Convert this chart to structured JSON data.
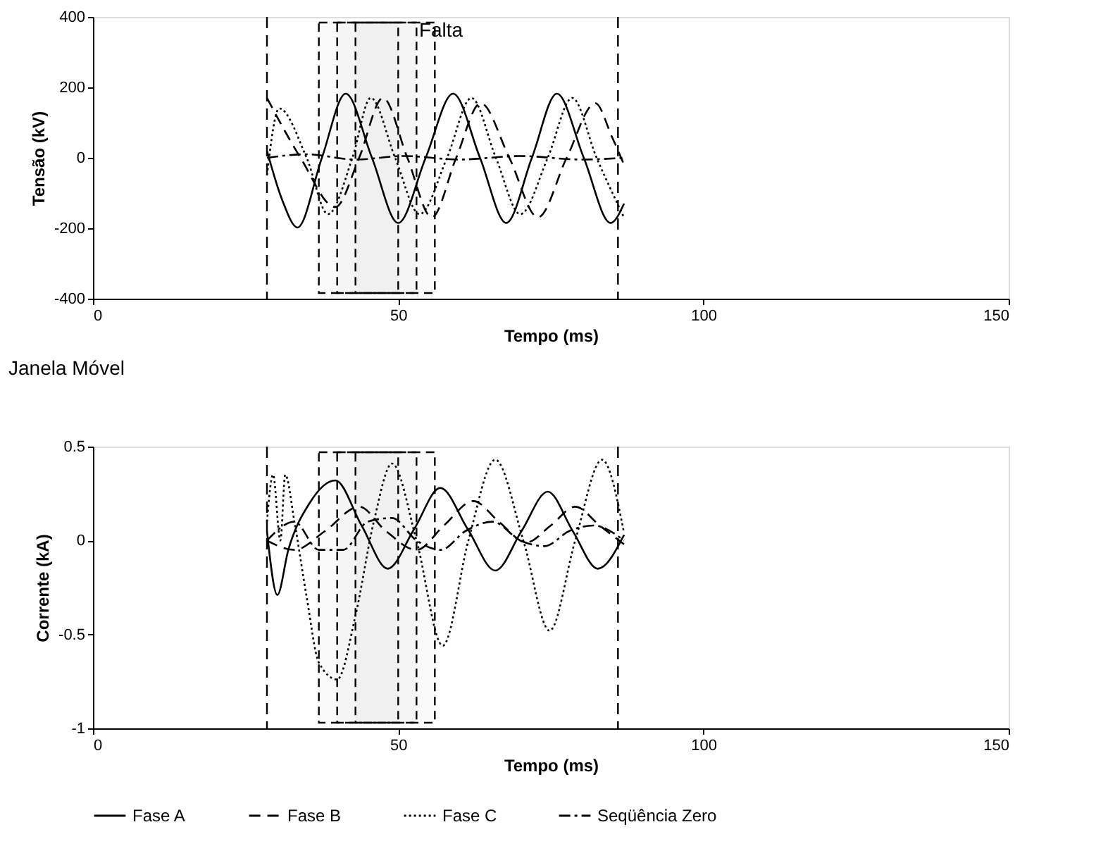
{
  "chart_data": [
    {
      "type": "line",
      "xlabel": "Tempo (ms)",
      "ylabel": "Tensão (kV)",
      "xlim": [
        0,
        150
      ],
      "xticks": [
        0,
        50,
        100,
        150
      ],
      "ylim": [
        -400,
        400
      ],
      "yticks": [
        -400,
        -200,
        0,
        200,
        400
      ],
      "grid": false,
      "legend": false,
      "marker": "none",
      "annotations": [
        "Falta",
        "Janela Móvel"
      ],
      "ref_lines": [
        {
          "axis": "x",
          "value": 28.5,
          "label": null,
          "color": "#000000",
          "line_style": "dashed"
        },
        {
          "axis": "x",
          "value": 86,
          "label": null,
          "color": "#000000",
          "line_style": "dashed"
        }
      ],
      "bands": [
        {
          "axis": "x",
          "from": 37,
          "to": 50,
          "label": null,
          "color": "#000000"
        },
        {
          "axis": "x",
          "from": 40,
          "to": 53,
          "label": null,
          "color": "#000000"
        },
        {
          "axis": "x",
          "from": 43,
          "to": 56,
          "label": null,
          "color": "#000000"
        }
      ],
      "series": [
        {
          "color": "#000000",
          "line_style": "solid",
          "x": [
            28.5,
            31,
            33.5,
            37.5,
            41.4,
            45.7,
            50,
            54.5,
            59,
            63.4,
            67.7,
            71.9,
            76,
            80.4,
            84.8,
            87
          ],
          "values": [
            20,
            -120,
            -198,
            0,
            182,
            0,
            -185,
            0,
            182,
            0,
            -185,
            0,
            182,
            0,
            -185,
            -130
          ]
        },
        {
          "color": "#000000",
          "line_style": "dashed",
          "x": [
            28.5,
            34,
            39.7,
            43.6,
            47.5,
            51.5,
            55.5,
            59.5,
            63.5,
            68.2,
            72.9,
            77.6,
            82.3,
            85,
            87
          ],
          "values": [
            170,
            0,
            -140,
            0,
            170,
            0,
            -169,
            0,
            155,
            0,
            -169,
            0,
            155,
            60,
            -20
          ]
        },
        {
          "color": "#000000",
          "line_style": "dotted",
          "x": [
            28.5,
            30.5,
            35,
            38.5,
            42.5,
            45.5,
            49.5,
            53.5,
            58,
            62,
            66,
            70,
            74.5,
            78.5,
            82.5,
            87
          ],
          "values": [
            -50,
            140,
            0,
            -160,
            0,
            170,
            0,
            -160,
            0,
            170,
            0,
            -160,
            0,
            170,
            0,
            -170
          ]
        },
        {
          "color": "#000000",
          "line_style": "dashdot",
          "x": [
            28.5,
            35,
            43,
            51,
            60,
            70,
            80,
            87
          ],
          "values": [
            0,
            10,
            -5,
            5,
            -5,
            5,
            -5,
            0
          ]
        }
      ]
    },
    {
      "type": "line",
      "xlabel": "Tempo (ms)",
      "ylabel": "Corrente (kA)",
      "xlim": [
        0,
        150
      ],
      "xticks": [
        0,
        50,
        100,
        150
      ],
      "ylim": [
        -1,
        0.5
      ],
      "yticks": [
        -1,
        -0.5,
        0,
        0.5
      ],
      "grid": false,
      "legend": "bottom",
      "marker": "none",
      "ref_lines": [
        {
          "axis": "x",
          "value": 28.5,
          "label": null,
          "color": "#000000",
          "line_style": "dashed"
        },
        {
          "axis": "x",
          "value": 86,
          "label": null,
          "color": "#000000",
          "line_style": "dashed"
        }
      ],
      "bands": [
        {
          "axis": "x",
          "from": 37,
          "to": 50,
          "label": null,
          "color": "#000000"
        },
        {
          "axis": "x",
          "from": 40,
          "to": 53,
          "label": null,
          "color": "#000000"
        },
        {
          "axis": "x",
          "from": 43,
          "to": 56,
          "label": null,
          "color": "#000000"
        }
      ],
      "series": [
        {
          "name": "Fase A",
          "color": "#000000",
          "line_style": "solid",
          "x": [
            28.5,
            30.2,
            32,
            35.5,
            39.7,
            44,
            48.3,
            52.6,
            56.9,
            61.4,
            65.9,
            70.2,
            74.5,
            78.6,
            82.7,
            87
          ],
          "values": [
            0.05,
            -0.29,
            -0.05,
            0.2,
            0.32,
            0.08,
            -0.15,
            0.06,
            0.28,
            0.06,
            -0.16,
            0.05,
            0.26,
            0.05,
            -0.15,
            0.03
          ]
        },
        {
          "name": "Fase B",
          "color": "#000000",
          "line_style": "dashed",
          "x": [
            28.5,
            33,
            38,
            43.6,
            48,
            53,
            57.5,
            62.3,
            66.5,
            71,
            75,
            79,
            83,
            87
          ],
          "values": [
            0,
            -0.05,
            0.05,
            0.18,
            0.05,
            -0.05,
            0.08,
            0.21,
            0.1,
            -0.01,
            0.08,
            0.18,
            0.08,
            -0.02
          ]
        },
        {
          "name": "Fase C",
          "color": "#000000",
          "line_style": "dotted",
          "x": [
            28.5,
            29.5,
            30.7,
            31.5,
            33,
            35,
            37,
            40,
            43,
            46,
            49,
            53,
            57.3,
            61.5,
            65.9,
            70.5,
            74.8,
            79,
            83.4,
            87
          ],
          "values": [
            0.1,
            0.35,
            0,
            0.35,
            0.1,
            -0.3,
            -0.65,
            -0.74,
            -0.4,
            0.1,
            0.41,
            0,
            -0.56,
            0,
            0.43,
            0,
            -0.48,
            0,
            0.43,
            0.04
          ]
        },
        {
          "name": "Seqüência Zero",
          "color": "#000000",
          "line_style": "dashdot",
          "x": [
            28.5,
            33,
            37,
            41,
            45,
            49,
            53,
            57,
            61,
            65.5,
            70,
            74,
            78,
            82,
            87
          ],
          "values": [
            0,
            0.1,
            -0.05,
            -0.05,
            0.1,
            0.12,
            0,
            -0.05,
            0.05,
            0.1,
            0,
            -0.03,
            0.05,
            0.08,
            0
          ]
        }
      ]
    }
  ]
}
